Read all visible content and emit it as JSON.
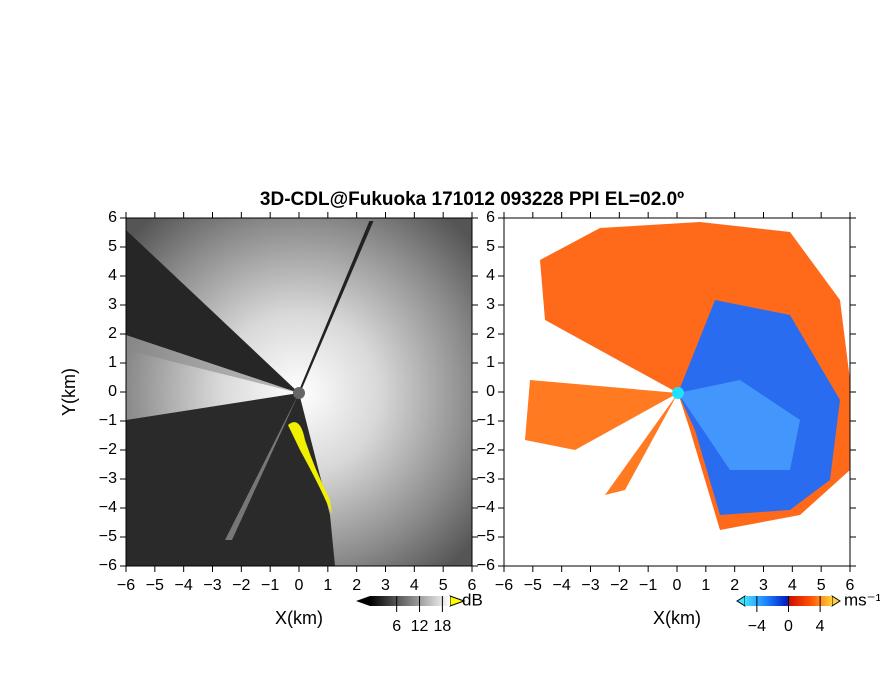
{
  "title": "3D-CDL@Fukuoka 171012 093228 PPI EL=02.0º",
  "chart_data": [
    {
      "type": "ppi",
      "xlabel": "X(km)",
      "ylabel": "Y(km)",
      "xlim": [
        -6,
        6
      ],
      "ylim": [
        -6,
        6
      ],
      "xticks": [
        {
          "value": -6,
          "label": "−6"
        },
        {
          "value": -5,
          "label": "−5"
        },
        {
          "value": -4,
          "label": "−4"
        },
        {
          "value": -3,
          "label": "−3"
        },
        {
          "value": -2,
          "label": "−2"
        },
        {
          "value": -1,
          "label": "−1"
        },
        0,
        1,
        2,
        3,
        4,
        5,
        6
      ],
      "yticks": [
        {
          "value": -6,
          "label": "−6"
        },
        {
          "value": -5,
          "label": "−5"
        },
        {
          "value": -4,
          "label": "−4"
        },
        {
          "value": -3,
          "label": "−3"
        },
        {
          "value": -2,
          "label": "−2"
        },
        {
          "value": -1,
          "label": "−1"
        },
        0,
        1,
        2,
        3,
        4,
        5,
        6
      ],
      "colorbar": {
        "label": "dB",
        "lim": [
          -1,
          20
        ],
        "ticks": [
          6,
          12,
          18
        ]
      }
    },
    {
      "type": "ppi",
      "xlabel": "X(km)",
      "xlim": [
        -6,
        6
      ],
      "ylim": [
        -6,
        6
      ],
      "xticks": [
        {
          "value": -6,
          "label": "−6"
        },
        {
          "value": -5,
          "label": "−5"
        },
        {
          "value": -4,
          "label": "−4"
        },
        {
          "value": -3,
          "label": "−3"
        },
        {
          "value": -2,
          "label": "−2"
        },
        {
          "value": -1,
          "label": "−1"
        },
        0,
        1,
        2,
        3,
        4,
        5,
        6
      ],
      "yticks": [
        {
          "value": -6,
          "label": "−6"
        },
        {
          "value": -5,
          "label": "−5"
        },
        {
          "value": -4,
          "label": "−4"
        },
        {
          "value": -3,
          "label": "−3"
        },
        {
          "value": -2,
          "label": "−2"
        },
        {
          "value": -1,
          "label": "−1"
        },
        0,
        1,
        2,
        3,
        4,
        5,
        6
      ],
      "colorbar": {
        "label": "ms⁻¹",
        "lim": [
          -5.5,
          5.5
        ],
        "ticks": [
          {
            "value": -4,
            "label": "−4"
          },
          0,
          4
        ]
      }
    }
  ]
}
